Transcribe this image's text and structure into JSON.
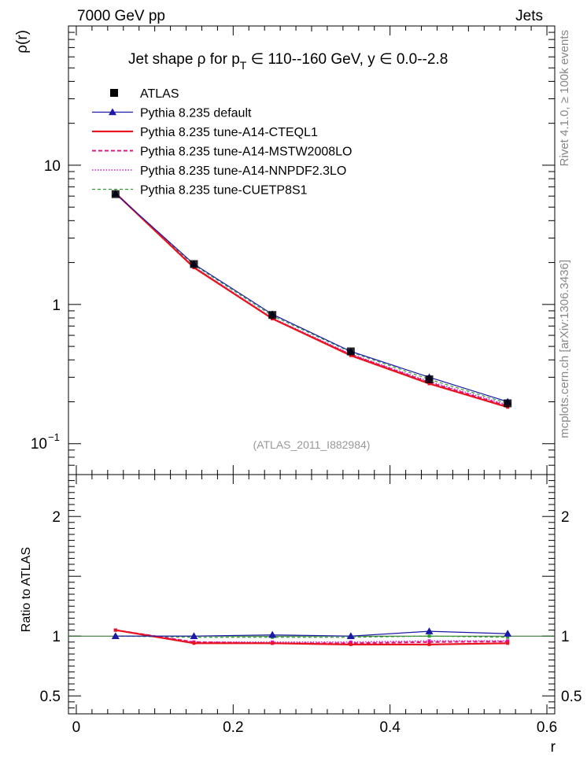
{
  "header": {
    "left": "7000 GeV pp",
    "right": "Jets",
    "side_top": "Rivet 4.1.0, ≥ 100k events",
    "side_bottom": "mcplots.cern.ch [arXiv:1306.3436]"
  },
  "chart_data": {
    "type": "line",
    "title": {
      "prefix": "Jet shape  ρ for p",
      "sub": "T",
      "suffix": " ∈ 110--160 GeV, y  ∈ 0.0--2.8"
    },
    "watermark": "(ATLAS_2011_I882984)",
    "xlabel": "r",
    "ylabel_top": "ρ(r)",
    "ylabel_bottom": "Ratio to ATLAS",
    "xlim": [
      -0.01,
      0.61
    ],
    "ylim_top": [
      0.06,
      100
    ],
    "ylim_bottom": [
      0.35,
      2.35
    ],
    "x_ticks": [
      {
        "value": 0,
        "label": "0"
      },
      {
        "value": 0.2,
        "label": "0.2"
      },
      {
        "value": 0.4,
        "label": "0.4"
      },
      {
        "value": 0.6,
        "label": "0.6"
      }
    ],
    "y_ticks_top": [
      {
        "value": 0.1,
        "base": "10",
        "exp": "−1"
      },
      {
        "value": 1,
        "base": "1",
        "exp": ""
      },
      {
        "value": 10,
        "base": "10",
        "exp": ""
      }
    ],
    "y_ticks_bottom": [
      {
        "value": 0.5,
        "label": "0.5"
      },
      {
        "value": 1,
        "label": "1"
      },
      {
        "value": 2,
        "label": "2"
      }
    ],
    "x": [
      0.05,
      0.15,
      0.25,
      0.35,
      0.45,
      0.55
    ],
    "data": {
      "name": "ATLAS",
      "values": [
        6.2,
        1.95,
        0.84,
        0.46,
        0.29,
        0.195
      ]
    },
    "series": [
      {
        "name": "Pythia 8.235 default",
        "color": "#1a1aa6",
        "dash": "",
        "marker": "triangle",
        "width": 1.2,
        "values": [
          6.25,
          1.95,
          0.85,
          0.46,
          0.3,
          0.2
        ],
        "ratio": [
          1.0,
          1.0,
          1.01,
          1.0,
          1.04,
          1.02
        ]
      },
      {
        "name": "Pythia 8.235 tune-A14-CTEQL1",
        "color": "#e8141e",
        "dash": "",
        "marker": "square",
        "width": 2.2,
        "values": [
          6.3,
          1.84,
          0.79,
          0.43,
          0.27,
          0.183
        ],
        "ratio": [
          1.05,
          0.94,
          0.94,
          0.93,
          0.93,
          0.94
        ]
      },
      {
        "name": "Pythia 8.235 tune-A14-MSTW2008LO",
        "color": "#e01480",
        "dash": "5,3",
        "marker": "square",
        "width": 2,
        "values": [
          6.3,
          1.85,
          0.79,
          0.435,
          0.275,
          0.186
        ],
        "ratio": [
          1.05,
          0.95,
          0.94,
          0.94,
          0.95,
          0.955
        ]
      },
      {
        "name": "Pythia 8.235 tune-A14-NNPDF2.3LO",
        "color": "#d61ad6",
        "dash": "1.5,2",
        "marker": "square",
        "width": 1.5,
        "values": [
          6.3,
          1.86,
          0.8,
          0.44,
          0.28,
          0.19
        ],
        "ratio": [
          1.05,
          0.95,
          0.95,
          0.95,
          0.96,
          0.96
        ]
      },
      {
        "name": "Pythia 8.235 tune-CUETP8S1",
        "color": "#2e9e2e",
        "dash": "4,3",
        "marker": "square",
        "width": 1.2,
        "values": [
          6.25,
          1.92,
          0.83,
          0.455,
          0.29,
          0.195
        ],
        "ratio": [
          1.0,
          0.99,
          0.99,
          0.99,
          1.0,
          0.99
        ]
      }
    ]
  }
}
